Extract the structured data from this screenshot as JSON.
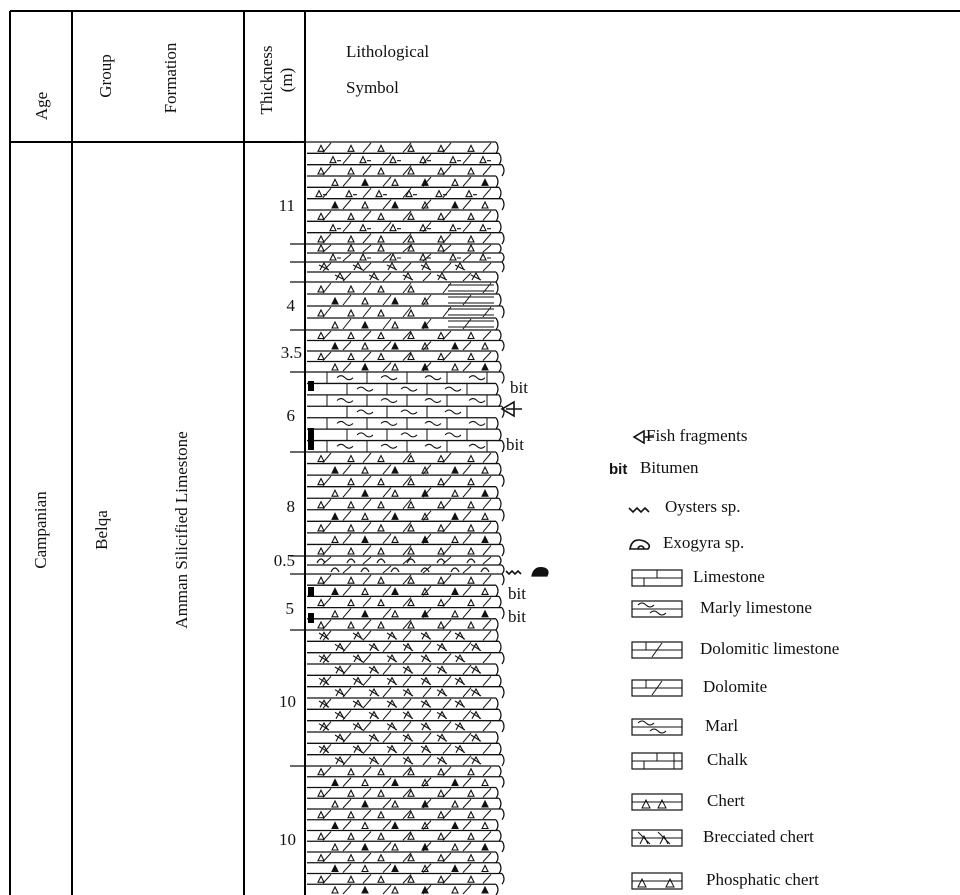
{
  "header": {
    "age": "Age",
    "group": "Group",
    "formation": "Formation",
    "thickness": "Thickness",
    "thickness_unit": "(m)",
    "lith_line1": "Lithological",
    "lith_line2": "Symbol"
  },
  "body": {
    "age": "Campanian",
    "group": "Belqa",
    "formation": "Amman Silicified Limestone"
  },
  "thickness_labels": [
    "11",
    "4",
    "3.5",
    "6",
    "8",
    "0.5",
    "5",
    "10",
    "10"
  ],
  "column_notes": {
    "bit_1": "bit",
    "bit_2": "bit",
    "bit_3": "bit",
    "bit_4": "bit"
  },
  "legend": [
    {
      "symbol": "fish-arrow",
      "label": "Fish fragments"
    },
    {
      "symbol": "bit-text",
      "glyph": "bit",
      "label": "Bitumen"
    },
    {
      "symbol": "oyster",
      "label": "Oysters sp."
    },
    {
      "symbol": "exogyra",
      "label": "Exogyra sp."
    },
    {
      "symbol": "limestone",
      "label": "Limestone"
    },
    {
      "symbol": "marly-limestone",
      "label": "Marly limestone"
    },
    {
      "symbol": "dolomitic-limestone",
      "label": "Dolomitic limestone"
    },
    {
      "symbol": "dolomite",
      "label": "Dolomite"
    },
    {
      "symbol": "marl",
      "label": "Marl"
    },
    {
      "symbol": "chalk",
      "label": "Chalk"
    },
    {
      "symbol": "chert",
      "label": "Chert"
    },
    {
      "symbol": "brecciated-chert",
      "label": "Brecciated chert"
    },
    {
      "symbol": "phosphatic-chert",
      "label": "Phosphatic chert"
    }
  ]
}
